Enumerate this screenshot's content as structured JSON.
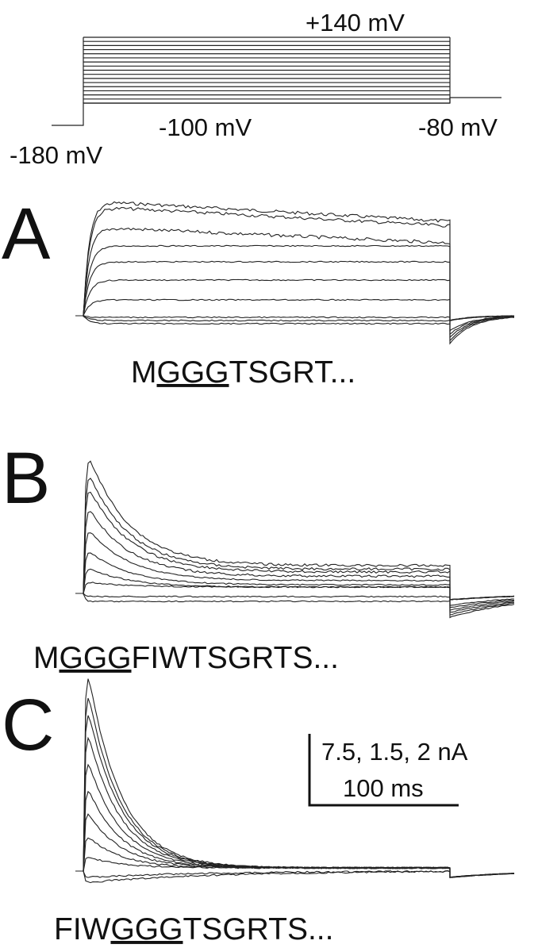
{
  "protocol": {
    "top_label": "+140 mV",
    "mid_label": "-100 mV",
    "end_label": "-80 mV",
    "start_label": "-180 mV"
  },
  "panels": [
    {
      "label": "A",
      "sequence": {
        "before": "M",
        "underlined": "GGG",
        "after": "TSGRT..."
      }
    },
    {
      "label": "B",
      "sequence": {
        "before": "M",
        "underlined": "GGG",
        "after": "FIWTSGRTS..."
      }
    },
    {
      "label": "C",
      "sequence": {
        "before": "FIW",
        "underlined": "GGG",
        "after": "TSGRTS..."
      }
    }
  ],
  "scale_bar": {
    "current": "7.5, 1.5, 2 nA",
    "time": "100 ms"
  }
}
